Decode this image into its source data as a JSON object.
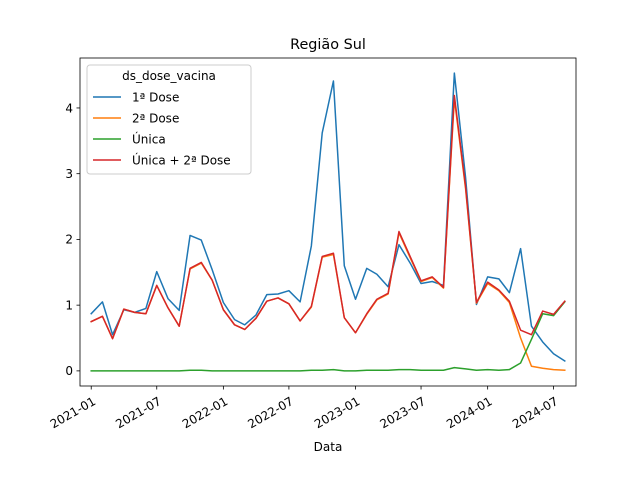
{
  "chart_data": {
    "type": "line",
    "title": "Região Sul",
    "xlabel": "Data",
    "ylabel": "",
    "x_axis_type": "date",
    "xlim": [
      "2020-12-01",
      "2024-09-01"
    ],
    "ylim": [
      -0.23,
      4.76
    ],
    "x_ticks": [
      {
        "date": "2021-01-01",
        "label": "2021-01"
      },
      {
        "date": "2021-07-01",
        "label": "2021-07"
      },
      {
        "date": "2022-01-01",
        "label": "2022-01"
      },
      {
        "date": "2022-07-01",
        "label": "2022-07"
      },
      {
        "date": "2023-01-01",
        "label": "2023-01"
      },
      {
        "date": "2023-07-01",
        "label": "2023-07"
      },
      {
        "date": "2024-01-01",
        "label": "2024-01"
      },
      {
        "date": "2024-07-01",
        "label": "2024-07"
      }
    ],
    "y_ticks": [
      0,
      1,
      2,
      3,
      4
    ],
    "grid": false,
    "legend": {
      "title": "ds_dose_vacina",
      "placement": "top-left"
    },
    "x": [
      "2021-01",
      "2021-02",
      "2021-03",
      "2021-04",
      "2021-05",
      "2021-06",
      "2021-07",
      "2021-08",
      "2021-09",
      "2021-10",
      "2021-11",
      "2021-12",
      "2022-01",
      "2022-02",
      "2022-03",
      "2022-04",
      "2022-05",
      "2022-06",
      "2022-07",
      "2022-08",
      "2022-09",
      "2022-10",
      "2022-11",
      "2022-12",
      "2023-01",
      "2023-02",
      "2023-03",
      "2023-04",
      "2023-05",
      "2023-06",
      "2023-07",
      "2023-08",
      "2023-09",
      "2023-10",
      "2023-11",
      "2023-12",
      "2024-01",
      "2024-02",
      "2024-03",
      "2024-04",
      "2024-05",
      "2024-06",
      "2024-07",
      "2024-08"
    ],
    "series": [
      {
        "name": "1ª Dose",
        "color": "#1f77b4",
        "values": [
          0.87,
          1.05,
          0.55,
          0.93,
          0.89,
          0.95,
          1.51,
          1.1,
          0.92,
          2.06,
          1.99,
          1.54,
          1.04,
          0.78,
          0.7,
          0.85,
          1.16,
          1.17,
          1.22,
          1.05,
          1.9,
          3.62,
          4.41,
          1.6,
          1.09,
          1.56,
          1.47,
          1.28,
          1.92,
          1.64,
          1.33,
          1.36,
          1.3,
          4.53,
          2.94,
          1.01,
          1.43,
          1.4,
          1.19,
          1.86,
          0.68,
          0.44,
          0.26,
          0.15
        ]
      },
      {
        "name": "2ª Dose",
        "color": "#ff7f0e",
        "values": [
          0.75,
          0.83,
          0.49,
          0.94,
          0.89,
          0.87,
          1.3,
          0.96,
          0.68,
          1.55,
          1.64,
          1.38,
          0.93,
          0.7,
          0.63,
          0.8,
          1.06,
          1.11,
          1.02,
          0.76,
          0.97,
          1.73,
          1.77,
          0.81,
          0.58,
          0.86,
          1.08,
          1.17,
          2.1,
          1.72,
          1.36,
          1.42,
          1.26,
          4.14,
          2.77,
          1.03,
          1.33,
          1.22,
          1.04,
          0.5,
          0.07,
          0.04,
          0.02,
          0.01
        ]
      },
      {
        "name": "Única",
        "color": "#2ca02c",
        "values": [
          0.0,
          0.0,
          0.0,
          0.0,
          0.0,
          0.0,
          0.0,
          0.0,
          0.0,
          0.01,
          0.01,
          0.0,
          0.0,
          0.0,
          0.0,
          0.0,
          0.0,
          0.0,
          0.0,
          0.0,
          0.01,
          0.01,
          0.02,
          0.0,
          0.0,
          0.01,
          0.01,
          0.01,
          0.02,
          0.02,
          0.01,
          0.01,
          0.01,
          0.05,
          0.03,
          0.01,
          0.02,
          0.01,
          0.02,
          0.12,
          0.48,
          0.87,
          0.84,
          1.05
        ]
      },
      {
        "name": "Única + 2ª Dose",
        "color": "#d62728",
        "values": [
          0.75,
          0.83,
          0.49,
          0.94,
          0.89,
          0.87,
          1.3,
          0.96,
          0.68,
          1.56,
          1.65,
          1.38,
          0.93,
          0.7,
          0.63,
          0.8,
          1.06,
          1.11,
          1.02,
          0.76,
          0.98,
          1.74,
          1.79,
          0.81,
          0.58,
          0.87,
          1.09,
          1.18,
          2.12,
          1.74,
          1.37,
          1.43,
          1.27,
          4.19,
          2.8,
          1.04,
          1.35,
          1.23,
          1.06,
          0.62,
          0.55,
          0.91,
          0.86,
          1.06
        ]
      }
    ]
  }
}
